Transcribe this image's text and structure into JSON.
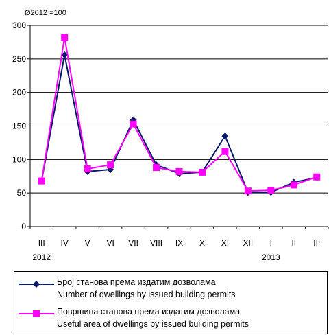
{
  "chart_data": {
    "type": "line",
    "unit_note": "Ø2012 =100",
    "categories": [
      "III",
      "IV",
      "V",
      "VI",
      "VII",
      "VIII",
      "IX",
      "X",
      "XI",
      "XII",
      "I",
      "II",
      "III"
    ],
    "year_labels": [
      {
        "label": "2012",
        "category_index": 0
      },
      {
        "label": "2013",
        "category_index": 10
      }
    ],
    "ylim": [
      0,
      300
    ],
    "yticks": [
      0,
      50,
      100,
      150,
      200,
      250,
      300
    ],
    "grid": true,
    "legend_position": "bottom",
    "series": [
      {
        "name_sr": "Број станова према издатим дозволама",
        "name_en": "Number of dwellings by issued building permits",
        "color": "#0a1a6b",
        "marker": "diamond",
        "values": [
          68,
          256,
          82,
          85,
          159,
          92,
          79,
          81,
          135,
          51,
          51,
          66,
          73
        ]
      },
      {
        "name_sr": "Површина станова према издатим дозволама",
        "name_en": "Useful area of dwellings by issued building permits",
        "color": "#ff00ff",
        "marker": "square",
        "values": [
          68,
          282,
          86,
          92,
          153,
          88,
          82,
          81,
          112,
          53,
          54,
          62,
          74
        ]
      }
    ]
  }
}
